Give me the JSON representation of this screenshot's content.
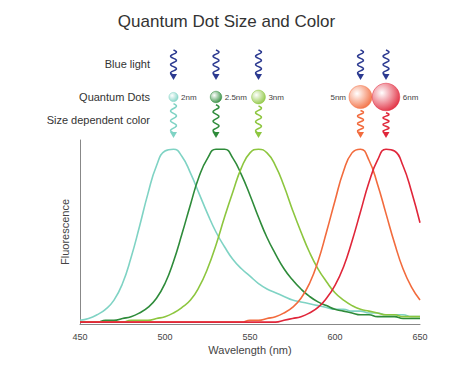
{
  "chart_data": {
    "type": "line",
    "title": "Quantum Dot Size and Color",
    "x_label": "Wavelength (nm)",
    "y_label": "Fluorescence",
    "annotations": [
      "Blue light",
      "Quantum Dots",
      "Size dependent color"
    ],
    "xlim": [
      450,
      650
    ],
    "xticks": [
      450,
      500,
      550,
      600,
      650
    ],
    "ylim": [
      0,
      1
    ],
    "tick_labels": "x",
    "grid": false,
    "x": [
      450,
      455,
      460,
      465,
      470,
      475,
      480,
      485,
      490,
      495,
      500,
      505,
      510,
      515,
      520,
      525,
      530,
      535,
      540,
      545,
      550,
      555,
      560,
      565,
      570,
      575,
      580,
      585,
      590,
      595,
      600,
      605,
      610,
      615,
      620,
      625,
      630,
      635,
      640,
      645,
      650
    ],
    "series": [
      {
        "color": "#7fd3c4",
        "dot_size": {
          "value": 2,
          "label": "2nm"
        },
        "values": [
          0.02,
          0.03,
          0.05,
          0.08,
          0.13,
          0.22,
          0.36,
          0.53,
          0.71,
          0.86,
          0.94,
          0.95,
          0.91,
          0.82,
          0.71,
          0.6,
          0.5,
          0.42,
          0.35,
          0.3,
          0.26,
          0.22,
          0.19,
          0.17,
          0.15,
          0.13,
          0.12,
          0.11,
          0.1,
          0.09,
          0.08,
          0.08,
          0.07,
          0.07,
          0.06,
          0.06,
          0.05,
          0.05,
          0.05,
          0.04,
          0.04
        ]
      },
      {
        "color": "#2e8b3a",
        "dot_size": {
          "value": 2.5,
          "label": "2.5nm"
        },
        "values": [
          0.01,
          0.01,
          0.01,
          0.02,
          0.02,
          0.03,
          0.04,
          0.06,
          0.09,
          0.14,
          0.22,
          0.34,
          0.49,
          0.65,
          0.8,
          0.9,
          0.95,
          0.95,
          0.9,
          0.81,
          0.7,
          0.58,
          0.47,
          0.38,
          0.3,
          0.24,
          0.19,
          0.15,
          0.12,
          0.1,
          0.08,
          0.07,
          0.06,
          0.05,
          0.05,
          0.04,
          0.04,
          0.04,
          0.03,
          0.03,
          0.03
        ]
      },
      {
        "color": "#8dc63f",
        "dot_size": {
          "value": 3,
          "label": "3nm"
        },
        "values": [
          0.01,
          0.01,
          0.01,
          0.01,
          0.01,
          0.01,
          0.02,
          0.02,
          0.02,
          0.03,
          0.04,
          0.06,
          0.09,
          0.13,
          0.2,
          0.3,
          0.43,
          0.58,
          0.72,
          0.85,
          0.93,
          0.95,
          0.93,
          0.86,
          0.75,
          0.62,
          0.5,
          0.39,
          0.3,
          0.23,
          0.17,
          0.13,
          0.1,
          0.08,
          0.07,
          0.06,
          0.05,
          0.05,
          0.04,
          0.04,
          0.04
        ]
      },
      {
        "color": "#f26b3d",
        "dot_size": {
          "value": 5,
          "label": "5nm"
        },
        "values": [
          0.01,
          0.01,
          0.01,
          0.01,
          0.01,
          0.01,
          0.01,
          0.01,
          0.01,
          0.01,
          0.01,
          0.01,
          0.01,
          0.01,
          0.01,
          0.01,
          0.01,
          0.01,
          0.01,
          0.01,
          0.02,
          0.02,
          0.03,
          0.04,
          0.06,
          0.09,
          0.14,
          0.22,
          0.34,
          0.5,
          0.67,
          0.83,
          0.93,
          0.95,
          0.89,
          0.76,
          0.6,
          0.44,
          0.3,
          0.2,
          0.13
        ]
      },
      {
        "color": "#e0263a",
        "dot_size": {
          "value": 6,
          "label": "6nm"
        },
        "values": [
          0.01,
          0.01,
          0.01,
          0.01,
          0.01,
          0.01,
          0.01,
          0.01,
          0.01,
          0.01,
          0.01,
          0.01,
          0.01,
          0.01,
          0.01,
          0.01,
          0.01,
          0.01,
          0.01,
          0.01,
          0.01,
          0.01,
          0.01,
          0.01,
          0.02,
          0.03,
          0.04,
          0.06,
          0.09,
          0.14,
          0.21,
          0.31,
          0.45,
          0.61,
          0.77,
          0.89,
          0.95,
          0.94,
          0.86,
          0.72,
          0.55
        ]
      }
    ]
  }
}
